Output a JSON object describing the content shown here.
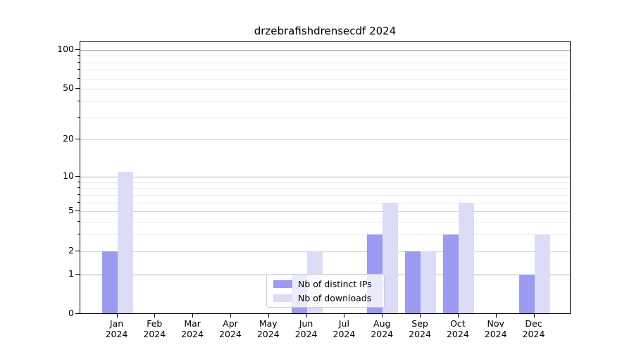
{
  "chart_data": {
    "type": "bar",
    "title": "drzebrafishdrensecdf 2024",
    "categories": [
      "Jan",
      "Feb",
      "Mar",
      "Apr",
      "May",
      "Jun",
      "Jul",
      "Aug",
      "Sep",
      "Oct",
      "Nov",
      "Dec"
    ],
    "category_year": "2024",
    "series": [
      {
        "name": "Nb of distinct IPs",
        "color": "#9b9bef",
        "values": [
          2,
          0,
          0,
          0,
          0,
          1,
          0,
          3,
          2,
          3,
          0,
          1
        ]
      },
      {
        "name": "Nb of downloads",
        "color": "#dcdcf8",
        "values": [
          11,
          0,
          0,
          0,
          0,
          2,
          0,
          6,
          2,
          6,
          0,
          3
        ]
      }
    ],
    "yscale": "log1p",
    "yticks": [
      0,
      1,
      2,
      5,
      10,
      20,
      50,
      100
    ],
    "yticks_minor": [
      3,
      4,
      6,
      7,
      8,
      9,
      30,
      40,
      60,
      70,
      80,
      90
    ],
    "ylim": [
      0,
      116
    ],
    "xlabel": "",
    "ylabel": "",
    "grid": "horizontal",
    "legend_position": "lower center",
    "colors": {
      "grid_major": "#b0b0b0",
      "grid_mid": "#d6d6d6",
      "grid_minor": "#ebebeb",
      "axis": "#000000",
      "legend_border": "#cccccc",
      "background": "#ffffff"
    }
  }
}
